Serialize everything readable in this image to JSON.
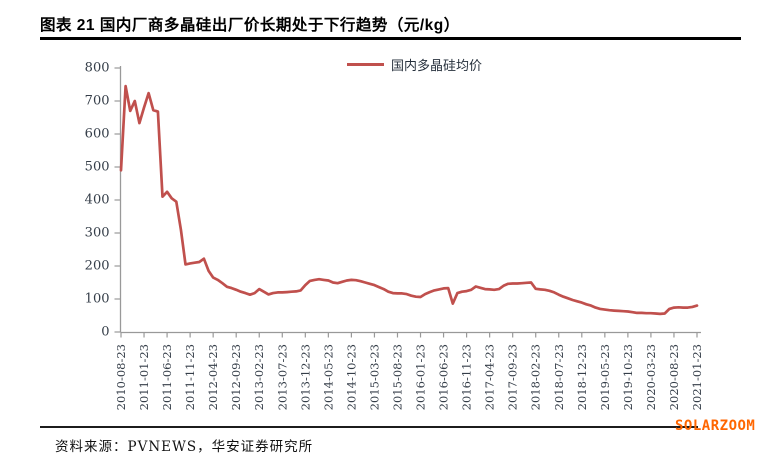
{
  "title": "图表 21 国内厂商多晶硅出厂价长期处于下行趋势（元/kg）",
  "source_note": "资料来源：PVNEWS，华安证券研究所",
  "watermark": "SOLARZOOM",
  "colors": {
    "line": "#c0504d",
    "axis": "#999999",
    "tick_label": "#343d48",
    "title": "#000000",
    "watermark": "#ff6600"
  },
  "chart_data": {
    "type": "line",
    "title": "图表 21 国内厂商多晶硅出厂价长期处于下行趋势（元/kg）",
    "ylabel": "元/kg",
    "xlabel": "",
    "ylim": [
      0,
      800
    ],
    "y_ticks": [
      0,
      100,
      200,
      300,
      400,
      500,
      600,
      700,
      800
    ],
    "grid": false,
    "legend_position": "top-center",
    "x_tick_labels": [
      "2010-08-23",
      "2011-01-23",
      "2011-06-23",
      "2011-11-23",
      "2012-04-23",
      "2012-09-23",
      "2013-02-23",
      "2013-07-23",
      "2013-12-23",
      "2014-05-23",
      "2014-10-23",
      "2015-03-23",
      "2015-08-23",
      "2016-01-23",
      "2016-06-23",
      "2016-11-23",
      "2017-04-23",
      "2017-09-23",
      "2018-02-23",
      "2018-07-23",
      "2018-12-23",
      "2019-05-23",
      "2019-10-23",
      "2020-03-23",
      "2020-08-23",
      "2021-01-23"
    ],
    "x_tick_interval_months": 5,
    "x_data_start": "2010-08",
    "x_data_interval": "monthly",
    "series": [
      {
        "name": "国内多晶硅均价",
        "color": "#c0504d",
        "values": [
          490,
          745,
          670,
          700,
          633,
          680,
          724,
          672,
          668,
          410,
          425,
          405,
          395,
          310,
          205,
          208,
          210,
          212,
          222,
          185,
          165,
          158,
          148,
          137,
          133,
          128,
          122,
          118,
          113,
          118,
          130,
          122,
          114,
          118,
          120,
          120,
          121,
          122,
          123,
          126,
          142,
          155,
          158,
          160,
          158,
          156,
          150,
          148,
          152,
          156,
          158,
          157,
          154,
          150,
          146,
          142,
          136,
          130,
          122,
          118,
          117,
          117,
          115,
          110,
          107,
          106,
          115,
          121,
          126,
          129,
          132,
          133,
          86,
          118,
          122,
          124,
          128,
          138,
          134,
          130,
          129,
          128,
          130,
          140,
          146,
          147,
          147,
          148,
          149,
          150,
          131,
          129,
          128,
          125,
          120,
          113,
          107,
          102,
          97,
          93,
          89,
          84,
          80,
          74,
          70,
          68,
          66,
          65,
          64,
          63,
          62,
          60,
          58,
          58,
          57,
          57,
          56,
          55,
          56,
          70,
          74,
          75,
          74,
          74,
          76,
          80
        ]
      }
    ]
  }
}
